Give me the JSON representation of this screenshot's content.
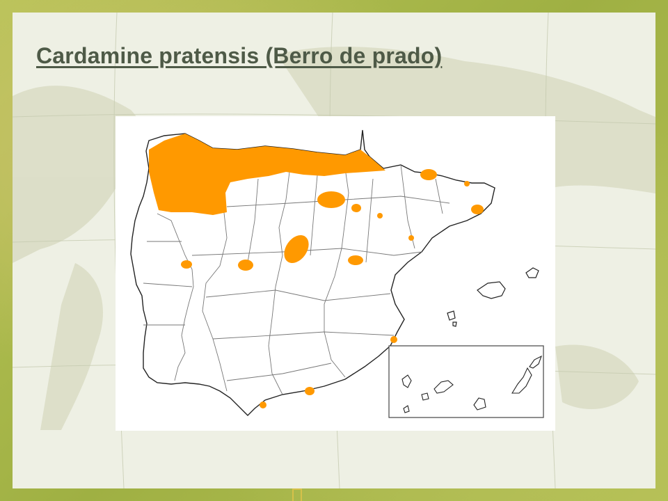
{
  "slide": {
    "title": "Cardamine pratensis (Berro de prado)",
    "background": "world-map-watermark",
    "frame_color": "#a9b84a"
  },
  "map": {
    "region": "Iberian Peninsula with Balearic and Canary Islands",
    "colors": {
      "distribution": "#ff9900",
      "border": "#555555",
      "coast": "#222222",
      "panel": "#ffffff"
    },
    "distribution_areas": [
      "northern-coast-band",
      "galicia",
      "huesca-pyrenees",
      "girona",
      "barcelona",
      "burgos",
      "la-rioja",
      "segovia-madrid",
      "salamanca",
      "avila",
      "cuenca",
      "valencia",
      "granada",
      "malaga"
    ]
  }
}
